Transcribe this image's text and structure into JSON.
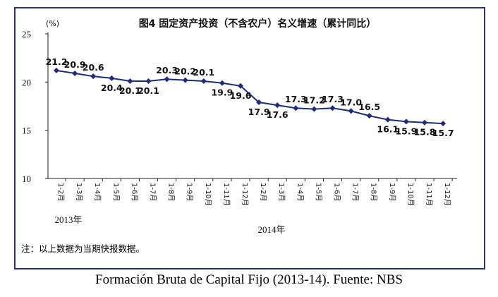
{
  "chart_data": {
    "type": "line",
    "title": "图4 固定资产投资（不含农户）名义增速（累计同比）",
    "unit": "(%)",
    "categories": [
      "1-2月",
      "1-3月",
      "1-4月",
      "1-5月",
      "1-6月",
      "1-7月",
      "1-8月",
      "1-9月",
      "1-10月",
      "1-11月",
      "1-12月",
      "1-2月",
      "1-3月",
      "1-4月",
      "1-5月",
      "1-6月",
      "1-7月",
      "1-8月",
      "1-9月",
      "1-10月",
      "1-11月",
      "1-12月"
    ],
    "values": [
      21.2,
      20.9,
      20.6,
      20.4,
      20.1,
      20.1,
      20.3,
      20.2,
      20.1,
      19.9,
      19.6,
      17.9,
      17.6,
      17.3,
      17.2,
      17.3,
      17.0,
      16.5,
      16.1,
      15.9,
      15.8,
      15.7
    ],
    "data_labels": [
      "21.2",
      "20.9",
      "20.6",
      "20.4",
      "20.1",
      "20.1",
      "20.3",
      "20.2",
      "20.1",
      "19.9",
      "19.6",
      "17.9",
      "17.6",
      "17.3",
      "17.2",
      "17.3",
      "17.0",
      "16.5",
      "16.1",
      "15.9",
      "15.8",
      "15.7"
    ],
    "y_ticks": [
      "25",
      "20",
      "15",
      "10"
    ],
    "ylim": [
      10,
      25
    ],
    "year_labels": [
      "2013年",
      "2014年"
    ],
    "grid": false,
    "line_color": "#1f2a78",
    "marker": "diamond"
  },
  "note": "注：以上数据为当期快报数据。",
  "caption": "Formación Bruta de Capital Fijo (2013-14). Fuente: NBS"
}
